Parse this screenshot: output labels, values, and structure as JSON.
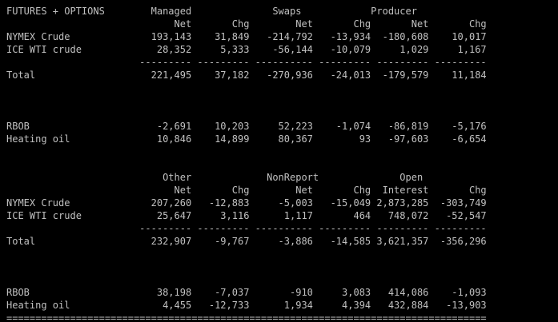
{
  "terminal": {
    "lines": [
      "FUTURES + OPTIONS        Managed              Swaps            Producer",
      "                             Net       Chg        Net       Chg       Net       Chg",
      "NYMEX Crude              193,143    31,849   -214,792   -13,934  -180,608    10,017",
      "ICE WTI crude             28,352     5,333    -56,144   -10,079     1,029     1,167",
      "                       --------- --------- ---------- --------- --------- ---------",
      "Total                    221,495    37,182   -270,936   -24,013  -179,579    11,184",
      "",
      "",
      "",
      "RBOB                      -2,691    10,203     52,223    -1,074   -86,819    -5,176",
      "Heating oil               10,846    14,899     80,367        93   -97,603    -6,654",
      "",
      "",
      "                           Other             NonReport              Open",
      "                             Net       Chg        Net       Chg  Interest       Chg",
      "NYMEX Crude              207,260   -12,883     -5,003   -15,049 2,873,285  -303,749",
      "ICE WTI crude             25,647     3,116      1,117       464   748,072   -52,547",
      "                       --------- --------- ---------- --------- --------- ---------",
      "Total                    232,907    -9,767     -3,886   -14,585 3,621,357  -356,296",
      "",
      "",
      "",
      "RBOB                      38,198    -7,037       -910     3,083   414,086    -1,093",
      "Heating oil                4,455   -12,733      1,934     4,394   432,884   -13,903",
      "==================================================================================="
    ]
  }
}
